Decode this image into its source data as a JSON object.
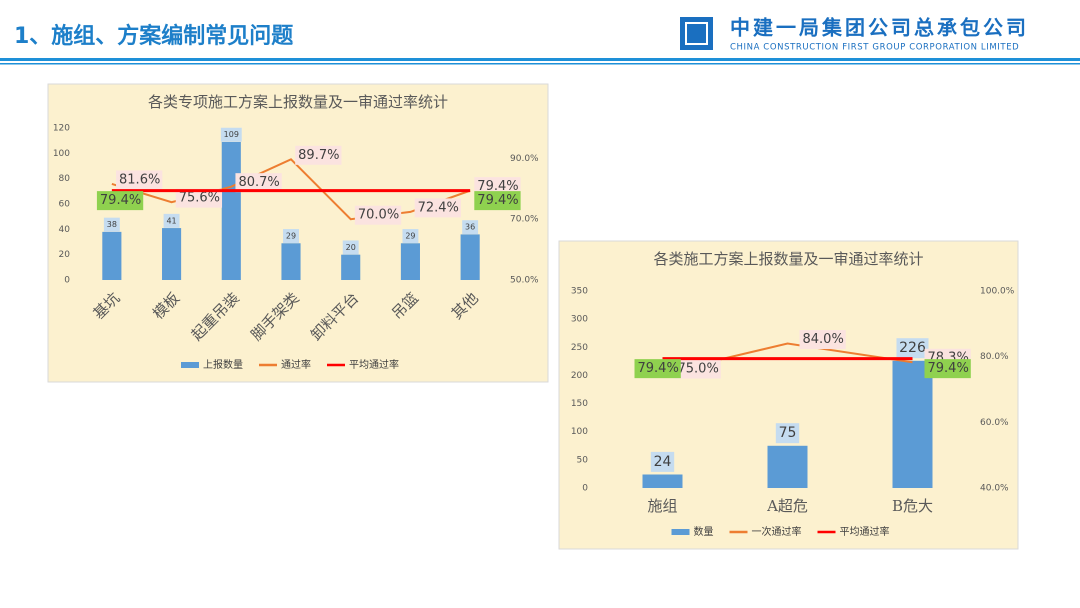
{
  "header": {
    "title": "1、施组、方案编制常见问题",
    "company": "中建一局集团公司总承包公司",
    "company_en": "CHINA CONSTRUCTION FIRST GROUP CORPORATION LIMITED"
  },
  "chart_data": [
    {
      "type": "combo",
      "title": "各类专项施工方案上报数量及一审通过率统计",
      "categories": [
        "基坑",
        "模板",
        "起重吊装",
        "脚手架类",
        "卸料平台",
        "吊篮",
        "其他"
      ],
      "series": [
        {
          "name": "上报数量",
          "type": "bar",
          "color": "#5b9bd5",
          "values": [
            38,
            41,
            109,
            29,
            20,
            29,
            36
          ]
        },
        {
          "name": "通过率",
          "type": "line",
          "axis": "y2",
          "color": "#ed7d31",
          "values": [
            81.6,
            75.6,
            80.7,
            89.7,
            70.0,
            72.4,
            79.4
          ],
          "value_labels": [
            "81.6%",
            "75.6%",
            "80.7%",
            "89.7%",
            "70.0%",
            "72.4%",
            "79.4%"
          ]
        },
        {
          "name": "平均通过率",
          "type": "line",
          "axis": "y2",
          "color": "#ff0000",
          "values": [
            79.4,
            79.4,
            79.4,
            79.4,
            79.4,
            79.4,
            79.4
          ],
          "value_labels": [
            "79.4%",
            null,
            null,
            null,
            null,
            null,
            "79.4%"
          ]
        }
      ],
      "ylim": [
        0,
        120
      ],
      "yticks": [
        0,
        20,
        40,
        60,
        80,
        100,
        120
      ],
      "y2lim": [
        50,
        100
      ],
      "y2ticks": [
        {
          "value": 50,
          "label": "50.0%"
        },
        {
          "value": 70,
          "label": "70.0%"
        },
        {
          "value": 90,
          "label": "90.0%"
        }
      ],
      "legend": "bottom"
    },
    {
      "type": "combo",
      "title": "各类施工方案上报数量及一审通过率统计",
      "categories": [
        "施组",
        "A超危",
        "B危大"
      ],
      "series": [
        {
          "name": "数量",
          "type": "bar",
          "color": "#5b9bd5",
          "values": [
            24,
            75,
            226
          ]
        },
        {
          "name": "一次通过率",
          "type": "line",
          "axis": "y2",
          "color": "#ed7d31",
          "values": [
            75.0,
            84.0,
            78.3
          ],
          "value_labels": [
            "75.0%",
            "84.0%",
            "78.3%"
          ]
        },
        {
          "name": "平均通过率",
          "type": "line",
          "axis": "y2",
          "color": "#ff0000",
          "values": [
            79.4,
            79.4,
            79.4
          ],
          "value_labels": [
            "79.4%",
            null,
            "79.4%"
          ]
        }
      ],
      "ylim": [
        0,
        350
      ],
      "yticks": [
        0,
        50,
        100,
        150,
        200,
        250,
        300,
        350
      ],
      "y2lim": [
        40,
        100
      ],
      "y2ticks": [
        {
          "value": 40,
          "label": "40.0%"
        },
        {
          "value": 60,
          "label": "60.0%"
        },
        {
          "value": 80,
          "label": "80.0%"
        },
        {
          "value": 100,
          "label": "100.0%"
        }
      ],
      "legend": "bottom"
    }
  ]
}
